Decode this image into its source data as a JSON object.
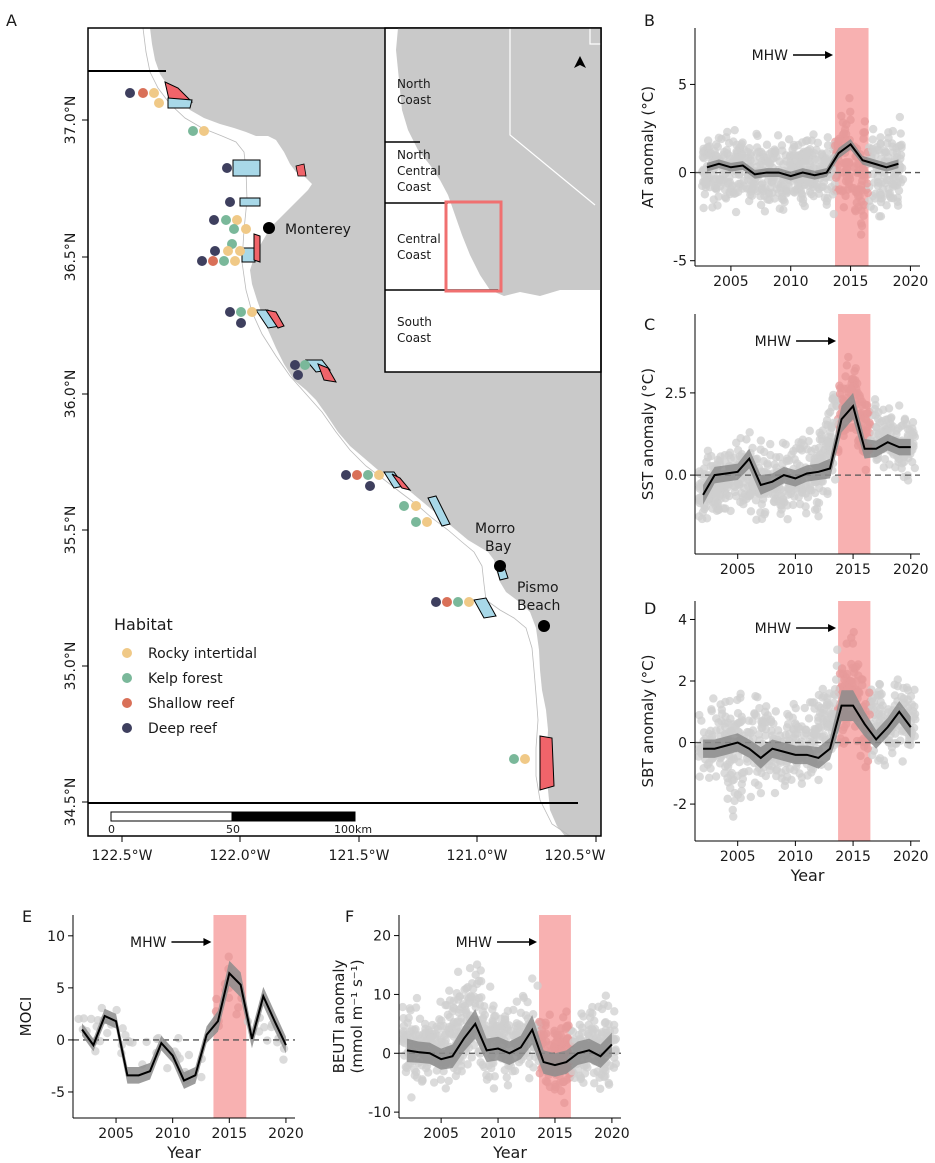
{
  "colors": {
    "land": "#c9c9c9",
    "ocean": "#ffffff",
    "mhw_band": "#f7a3a3",
    "raw_points": "#cfcfcf",
    "ci_band": "#8c8c8c",
    "mean_line": "#000000",
    "mpa_red": "#f0646a",
    "mpa_blue": "#a8d8e8",
    "inset_box": "#f07070",
    "rocky_intertidal": "#f0c987",
    "kelp_forest": "#7ab89a",
    "shallow_reef": "#d97058",
    "deep_reef": "#3e3f5e"
  },
  "map": {
    "panel_label": "A",
    "x_ticks": [
      "122.5°W",
      "122.0°W",
      "121.5°W",
      "121.0°W",
      "120.5°W"
    ],
    "y_ticks": [
      "37.0°N",
      "36.5°N",
      "36.0°N",
      "35.5°N",
      "35.0°N",
      "34.5°N"
    ],
    "places": {
      "monterey": "Monterey",
      "morro_line1": "Morro",
      "morro_line2": "Bay",
      "pismo_line1": "Pismo",
      "pismo_line2": "Beach"
    },
    "inset_regions": {
      "north": "North Coast",
      "nc_line1": "North",
      "nc_line2": "Central",
      "nc_line3": "Coast",
      "central_line1": "Central",
      "central_line2": "Coast",
      "south_line1": "South",
      "south_line2": "Coast",
      "north_line1": "North",
      "north_line2": "Coast"
    },
    "legend": {
      "title": "Habitat",
      "items": [
        {
          "label": "Rocky intertidal",
          "color": "#f0c987"
        },
        {
          "label": "Kelp forest",
          "color": "#7ab89a"
        },
        {
          "label": "Shallow reef",
          "color": "#d97058"
        },
        {
          "label": "Deep reef",
          "color": "#3e3f5e"
        }
      ]
    },
    "scalebar": {
      "ticks": [
        "0",
        "50",
        "100km"
      ]
    }
  },
  "chart_data": [
    {
      "id": "B",
      "type": "line",
      "panel_label": "B",
      "ylabel": "AT anomaly (°C)",
      "xlabel": "",
      "annotation": "MHW",
      "xlim": [
        2002,
        2020.8
      ],
      "ylim": [
        -5.3,
        8.2
      ],
      "yticks": [
        -5,
        0,
        5
      ],
      "xticks": [
        2005,
        2010,
        2015,
        2020
      ],
      "mhw_band": [
        2013.7,
        2016.5
      ],
      "x": [
        2003,
        2004,
        2005,
        2006,
        2007,
        2008,
        2009,
        2010,
        2011,
        2012,
        2013,
        2014,
        2015,
        2016,
        2017,
        2018,
        2019
      ],
      "mean": [
        0.3,
        0.5,
        0.3,
        0.4,
        -0.1,
        0.0,
        0.0,
        -0.2,
        0.0,
        -0.15,
        0.0,
        1.1,
        1.6,
        0.7,
        0.5,
        0.3,
        0.5
      ],
      "ci_half_width": [
        0.25,
        0.25,
        0.25,
        0.25,
        0.25,
        0.25,
        0.25,
        0.25,
        0.25,
        0.25,
        0.25,
        0.3,
        0.3,
        0.25,
        0.25,
        0.25,
        0.25
      ],
      "spread": [
        [
          2003,
          -2.5,
          3.0
        ],
        [
          2006,
          -2.5,
          3.0
        ],
        [
          2010,
          -2.8,
          2.8
        ],
        [
          2013,
          -2.5,
          2.8
        ],
        [
          2015,
          -3.5,
          5.5
        ],
        [
          2016,
          -4.5,
          4.0
        ],
        [
          2019,
          -2.5,
          3.5
        ]
      ]
    },
    {
      "id": "C",
      "type": "line",
      "panel_label": "C",
      "ylabel": "SST anomaly (°C)",
      "xlabel": "",
      "annotation": "MHW",
      "xlim": [
        2001.3,
        2020.8
      ],
      "ylim": [
        -2.4,
        4.9
      ],
      "yticks": [
        0.0,
        2.5
      ],
      "ytick_labels": [
        "0.0",
        "2.5"
      ],
      "xticks": [
        2005,
        2010,
        2015,
        2020
      ],
      "mhw_band": [
        2013.7,
        2016.5
      ],
      "x": [
        2002,
        2003,
        2004,
        2005,
        2006,
        2007,
        2008,
        2009,
        2010,
        2011,
        2012,
        2013,
        2014,
        2015,
        2016,
        2017,
        2018,
        2019,
        2020
      ],
      "mean": [
        -0.6,
        0.0,
        0.05,
        0.1,
        0.5,
        -0.3,
        -0.2,
        0.0,
        -0.1,
        0.05,
        0.1,
        0.2,
        1.7,
        2.1,
        0.8,
        0.8,
        1.0,
        0.85,
        0.85
      ],
      "ci_half_width": [
        0.3,
        0.25,
        0.25,
        0.25,
        0.3,
        0.3,
        0.25,
        0.25,
        0.25,
        0.25,
        0.25,
        0.3,
        0.4,
        0.4,
        0.3,
        0.25,
        0.25,
        0.25,
        0.25
      ],
      "spread": [
        [
          2002,
          -1.8,
          0.8
        ],
        [
          2005,
          -1.5,
          1.5
        ],
        [
          2009,
          -1.8,
          1.5
        ],
        [
          2012,
          -1.5,
          1.8
        ],
        [
          2014,
          0.0,
          3.8
        ],
        [
          2015,
          0.3,
          4.5
        ],
        [
          2016,
          -0.5,
          3.0
        ],
        [
          2018,
          -0.3,
          2.5
        ],
        [
          2020,
          -0.5,
          2.2
        ]
      ]
    },
    {
      "id": "D",
      "type": "line",
      "panel_label": "D",
      "ylabel": "SBT anomaly (°C)",
      "xlabel": "Year",
      "annotation": "MHW",
      "xlim": [
        2001.3,
        2020.8
      ],
      "ylim": [
        -3.2,
        4.6
      ],
      "yticks": [
        -2,
        0,
        2,
        4
      ],
      "xticks": [
        2005,
        2010,
        2015,
        2020
      ],
      "mhw_band": [
        2013.7,
        2016.5
      ],
      "x": [
        2002,
        2003,
        2004,
        2005,
        2006,
        2007,
        2008,
        2009,
        2010,
        2011,
        2012,
        2013,
        2014,
        2015,
        2016,
        2017,
        2018,
        2019,
        2020
      ],
      "mean": [
        -0.2,
        -0.2,
        -0.1,
        0.0,
        -0.2,
        -0.5,
        -0.2,
        -0.3,
        -0.4,
        -0.4,
        -0.5,
        -0.2,
        1.2,
        1.2,
        0.6,
        0.1,
        0.5,
        1.0,
        0.5
      ],
      "ci_half_width": [
        0.3,
        0.3,
        0.3,
        0.3,
        0.3,
        0.35,
        0.3,
        0.3,
        0.3,
        0.3,
        0.35,
        0.35,
        0.5,
        0.5,
        0.4,
        0.3,
        0.3,
        0.35,
        0.35
      ],
      "spread": [
        [
          2002,
          -2.0,
          1.5
        ],
        [
          2005,
          -2.8,
          2.5
        ],
        [
          2008,
          -1.8,
          1.5
        ],
        [
          2011,
          -2.0,
          1.8
        ],
        [
          2014,
          -1.0,
          3.5
        ],
        [
          2015,
          -0.5,
          4.2
        ],
        [
          2016,
          -1.5,
          2.5
        ],
        [
          2019,
          -1.0,
          2.5
        ]
      ]
    },
    {
      "id": "E",
      "type": "line",
      "panel_label": "E",
      "ylabel": "MOCI",
      "xlabel": "Year",
      "annotation": "MHW",
      "xlim": [
        2001.2,
        2020.8
      ],
      "ylim": [
        -7.5,
        12.0
      ],
      "yticks": [
        -5,
        0,
        5,
        10
      ],
      "xticks": [
        2005,
        2010,
        2015,
        2020
      ],
      "mhw_band": [
        2013.6,
        2016.5
      ],
      "x": [
        2002,
        2003,
        2004,
        2005,
        2006,
        2007,
        2008,
        2009,
        2010,
        2011,
        2012,
        2013,
        2014,
        2015,
        2016,
        2017,
        2018,
        2019,
        2020
      ],
      "mean": [
        1.0,
        -0.5,
        2.3,
        1.8,
        -3.4,
        -3.4,
        -3.0,
        -0.3,
        -1.5,
        -3.9,
        -3.4,
        0.5,
        1.8,
        6.4,
        5.3,
        0.1,
        4.2,
        1.8,
        -0.5
      ],
      "ci_half_width": [
        0.6,
        0.6,
        0.7,
        0.7,
        0.8,
        0.8,
        0.8,
        0.7,
        0.7,
        0.8,
        0.8,
        0.8,
        1.0,
        1.2,
        1.2,
        0.9,
        0.9,
        0.9,
        0.8
      ],
      "spread": [
        [
          2002,
          -1.0,
          3.0
        ],
        [
          2005,
          -2.0,
          6.0
        ],
        [
          2007,
          -6.5,
          1.0
        ],
        [
          2010,
          -4.0,
          2.0
        ],
        [
          2012,
          -7.0,
          -1.0
        ],
        [
          2015,
          2.0,
          11.0
        ],
        [
          2017,
          -2.0,
          7.0
        ],
        [
          2020,
          -3.0,
          3.0
        ]
      ]
    },
    {
      "id": "F",
      "type": "line",
      "panel_label": "F",
      "ylabel_line1": "BEUTI anomaly",
      "ylabel_line2": "(mmol m⁻¹ s⁻¹)",
      "xlabel": "Year",
      "annotation": "MHW",
      "xlim": [
        2001.3,
        2020.8
      ],
      "ylim": [
        -11.0,
        23.5
      ],
      "yticks": [
        -10,
        0,
        10,
        20
      ],
      "xticks": [
        2005,
        2010,
        2015,
        2020
      ],
      "mhw_band": [
        2013.6,
        2016.4
      ],
      "x": [
        2002,
        2003,
        2004,
        2005,
        2006,
        2007,
        2008,
        2009,
        2010,
        2011,
        2012,
        2013,
        2014,
        2015,
        2016,
        2017,
        2018,
        2019,
        2020
      ],
      "mean": [
        0.5,
        0.2,
        0.0,
        -1.0,
        -0.5,
        2.5,
        5.0,
        0.5,
        0.8,
        0.0,
        1.0,
        4.0,
        -1.5,
        -2.0,
        -1.5,
        0.0,
        0.5,
        -0.5,
        1.5
      ],
      "ci_half_width": [
        2.0,
        1.8,
        1.8,
        1.8,
        2.0,
        2.2,
        2.5,
        2.0,
        2.0,
        2.0,
        2.0,
        2.5,
        2.0,
        2.0,
        2.0,
        2.0,
        2.0,
        2.0,
        2.0
      ],
      "spread": [
        [
          2002,
          -8.0,
          12.0
        ],
        [
          2005,
          -9.0,
          10.0
        ],
        [
          2008,
          -6.0,
          21.0
        ],
        [
          2010,
          -9.0,
          13.0
        ],
        [
          2013,
          -8.0,
          14.0
        ],
        [
          2015,
          -10.0,
          8.0
        ],
        [
          2018,
          -8.0,
          12.0
        ],
        [
          2020,
          -7.0,
          10.0
        ]
      ]
    }
  ]
}
